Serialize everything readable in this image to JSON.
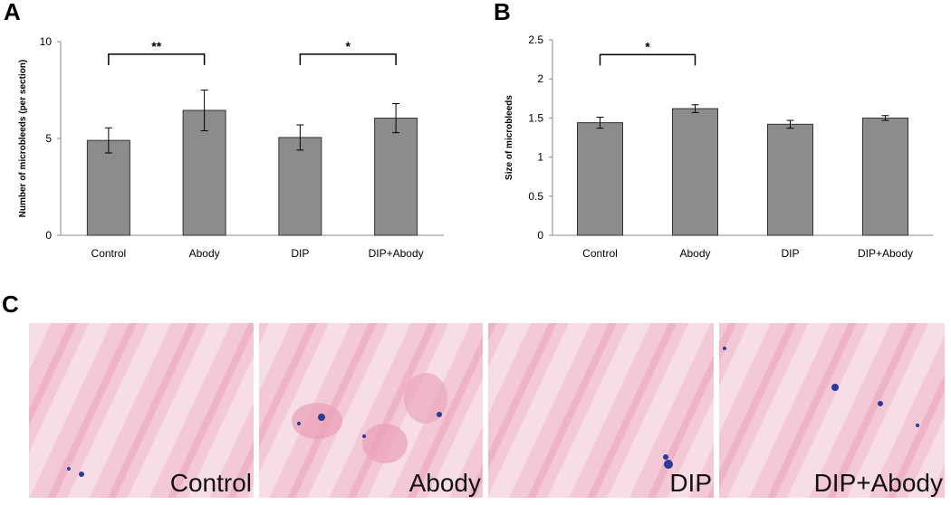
{
  "panel_letters": [
    "A",
    "B",
    "C"
  ],
  "chart_data": [
    {
      "type": "bar",
      "ylabel": "Number of microbleeds (per section)",
      "categories": [
        "Control",
        "Abody",
        "DIP",
        "DIP+Abody"
      ],
      "values": [
        4.9,
        6.45,
        5.05,
        6.05
      ],
      "errors": [
        0.65,
        1.05,
        0.65,
        0.75
      ],
      "color": "#8c8c8c",
      "ylim": [
        0,
        10
      ],
      "yticks": [
        0,
        5,
        10
      ],
      "significance": [
        {
          "from": 0,
          "to": 1,
          "y": 9.35,
          "label": "**"
        },
        {
          "from": 2,
          "to": 3,
          "y": 9.35,
          "label": "*"
        }
      ]
    },
    {
      "type": "bar",
      "ylabel": "Size of microbleeds",
      "categories": [
        "Control",
        "Abody",
        "DIP",
        "DIP+Abody"
      ],
      "values": [
        1.44,
        1.62,
        1.42,
        1.5
      ],
      "errors": [
        0.07,
        0.05,
        0.05,
        0.03
      ],
      "color": "#8c8c8c",
      "ylim": [
        0,
        2.5
      ],
      "yticks": [
        0,
        0.5,
        1,
        1.5,
        2,
        2.5
      ],
      "significance": [
        {
          "from": 0,
          "to": 1,
          "y": 2.31,
          "label": "*"
        }
      ]
    }
  ],
  "images": {
    "labels": [
      "Control",
      "Abody",
      "DIP",
      "DIP+Abody"
    ]
  }
}
